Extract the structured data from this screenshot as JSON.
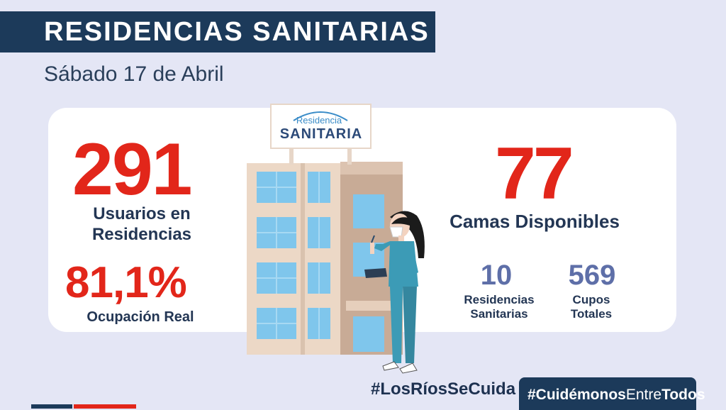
{
  "header": {
    "title": "RESIDENCIAS SANITARIAS",
    "date": "Sábado 17 de Abril"
  },
  "stats": {
    "usuarios_value": "291",
    "usuarios_label_line1": "Usuarios en",
    "usuarios_label_line2": "Residencias",
    "ocupacion_value": "81,1%",
    "ocupacion_label": "Ocupación Real",
    "camas_value": "77",
    "camas_label": "Camas Disponibles",
    "residencias_value": "10",
    "residencias_label_line1": "Residencias",
    "residencias_label_line2": "Sanitarias",
    "cupos_value": "569",
    "cupos_label_line1": "Cupos",
    "cupos_label_line2": "Totales"
  },
  "sign": {
    "top": "Residencia",
    "main": "SANITARIA"
  },
  "footer": {
    "hashtag1": "#LosRíosSeCuida",
    "hashtag2_a": "#Cuidémonos",
    "hashtag2_b": "Entre",
    "hashtag2_c": "Todos"
  },
  "colors": {
    "navy": "#1c3a5a",
    "red": "#e2261a",
    "muted_blue": "#5e6fa8",
    "background": "#e4e6f5"
  }
}
